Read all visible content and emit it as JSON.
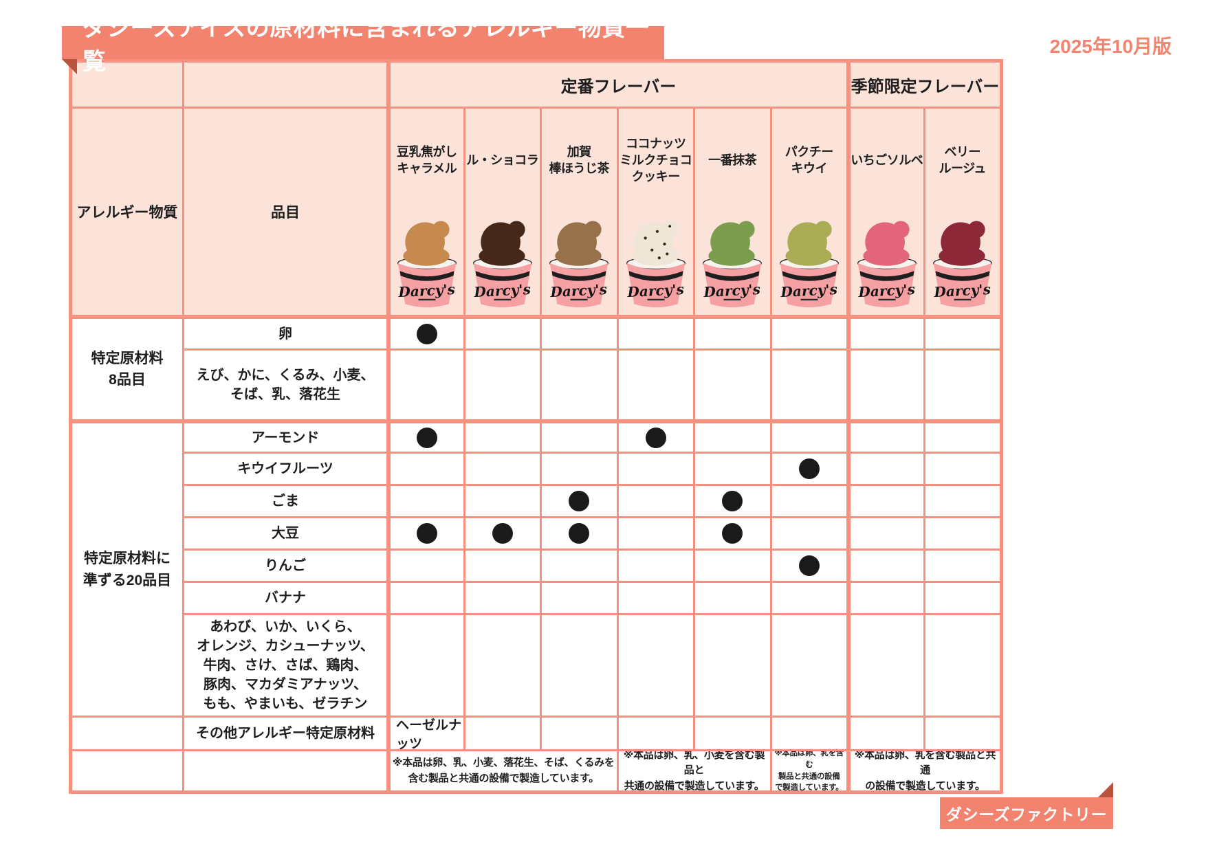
{
  "meta": {
    "title": "ダシーズアイスの原材料に含まれるアレルギー物質一覧",
    "edition": "2025年10月版",
    "badge": "ダシーズファクトリー"
  },
  "colors": {
    "accent": "#F2836E",
    "line": "#F5917E",
    "pink": "#FBE3DA",
    "fold": "#B8543E",
    "text": "#1E1E1E",
    "mark": "#1A1A1A",
    "cup": "#F5A0A3"
  },
  "table": {
    "header": {
      "allergen": "アレルギー物質",
      "item": "品目",
      "standard": "定番フレーバー",
      "seasonal": "季節限定フレーバー"
    },
    "cup_logo": "Darcy's",
    "flavors": [
      {
        "name": "豆乳焦がし\nキャラメル",
        "group": "standard",
        "scoop_color": "#C6894E"
      },
      {
        "name": "ル・ショコラ",
        "group": "standard",
        "scoop_color": "#46281B"
      },
      {
        "name": "加賀\n棒ほうじ茶",
        "group": "standard",
        "scoop_color": "#97714A"
      },
      {
        "name": "ココナッツ\nミルクチョコ\nクッキー",
        "group": "standard",
        "scoop_color": "#EFE6D8",
        "speckles": true
      },
      {
        "name": "一番抹茶",
        "group": "standard",
        "scoop_color": "#7C9C4E"
      },
      {
        "name": "パクチー\nキウイ",
        "group": "standard",
        "scoop_color": "#A9AC55"
      },
      {
        "name": "いちごソルベ",
        "group": "seasonal",
        "scoop_color": "#E3657B"
      },
      {
        "name": "ベリー\nルージュ",
        "group": "seasonal",
        "scoop_color": "#8C2838"
      }
    ],
    "row_groups": [
      {
        "label": "特定原材料\n8品目",
        "rows": [
          {
            "item": "卵",
            "marks": [
              0
            ]
          },
          {
            "item": "えび、かに、くるみ、小麦、\nそば、乳、落花生",
            "marks": []
          }
        ]
      },
      {
        "label": "特定原材料に\n準ずる20品目",
        "rows": [
          {
            "item": "アーモンド",
            "marks": [
              0,
              3
            ]
          },
          {
            "item": "キウイフルーツ",
            "marks": [
              5
            ]
          },
          {
            "item": "ごま",
            "marks": [
              2,
              4
            ]
          },
          {
            "item": "大豆",
            "marks": [
              0,
              1,
              2,
              4
            ]
          },
          {
            "item": "りんご",
            "marks": [
              5
            ]
          },
          {
            "item": "バナナ",
            "marks": []
          },
          {
            "item": "あわび、いか、いくら、\nオレンジ、カシューナッツ、\n牛肉、さけ、さば、鶏肉、\n豚肉、マカダミアナッツ、\nもも、やまいも、ゼラチン",
            "marks": []
          }
        ]
      },
      {
        "label": "",
        "rows": [
          {
            "item": "その他アレルギー特定原材料",
            "marks": [],
            "note_col": 0,
            "note": "ヘーゼルナッツ"
          }
        ]
      }
    ],
    "footnotes": [
      {
        "cols": [
          0,
          2
        ],
        "text": "※本品は卵、乳、小麦、落花生、そば、くるみを\n含む製品と共通の設備で製造しています。"
      },
      {
        "cols": [
          3,
          4
        ],
        "text": "※本品は卵、乳、小麦を含む製品と\n共通の設備で製造しています。"
      },
      {
        "cols": [
          5,
          5
        ],
        "small": true,
        "text": "※本品は卵、乳を含む\n製品と共通の設備\nで製造しています。"
      },
      {
        "cols": [
          6,
          7
        ],
        "text": "※本品は卵、乳を含む製品と共通\nの設備で製造しています。"
      }
    ]
  }
}
